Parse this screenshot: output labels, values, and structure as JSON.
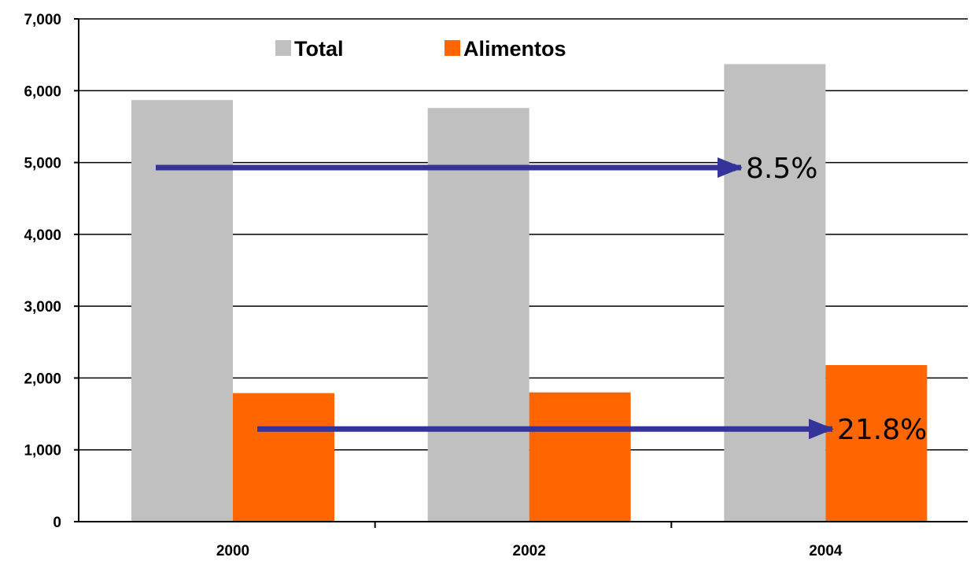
{
  "chart_data": {
    "type": "bar",
    "categories": [
      "2000",
      "2002",
      "2004"
    ],
    "series": [
      {
        "name": "Total",
        "values": [
          5870,
          5760,
          6370
        ],
        "color": "#c0c0c0"
      },
      {
        "name": "Alimentos",
        "values": [
          1790,
          1800,
          2180
        ],
        "color": "#ff6600"
      }
    ],
    "ylim": [
      0,
      7000
    ],
    "yticks": [
      0,
      1000,
      2000,
      3000,
      4000,
      5000,
      6000,
      7000
    ],
    "ytick_labels": [
      "0",
      "1,000",
      "2,000",
      "3,000",
      "4,000",
      "5,000",
      "6,000",
      "7,000"
    ],
    "grid": true,
    "legend_position": "top",
    "annotations": [
      {
        "label": "8.5%",
        "series": "Total",
        "from_category": "2000",
        "to_category": "2004",
        "y": 4930
      },
      {
        "label": "21.8%",
        "series": "Alimentos",
        "from_category": "2000",
        "to_category": "2004",
        "y": 1290
      }
    ],
    "arrow_color": "#333399"
  }
}
